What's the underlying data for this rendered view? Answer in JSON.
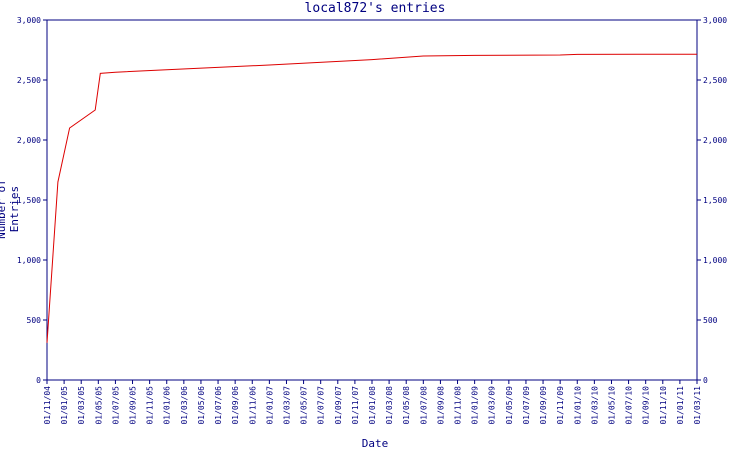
{
  "chart_data": {
    "type": "line",
    "title": "local872's entries",
    "xlabel": "Date",
    "ylabel": "Number of Entries",
    "ylim": [
      0,
      3000
    ],
    "y_ticks": [
      "0",
      "500",
      "1,000",
      "1,500",
      "2,000",
      "2,500",
      "3,000"
    ],
    "x_ticks": [
      "01/11/04",
      "01/01/05",
      "01/03/05",
      "01/05/05",
      "01/07/05",
      "01/09/05",
      "01/11/05",
      "01/01/06",
      "01/03/06",
      "01/05/06",
      "01/07/06",
      "01/09/06",
      "01/11/06",
      "01/01/07",
      "01/03/07",
      "01/05/07",
      "01/07/07",
      "01/09/07",
      "01/11/07",
      "01/01/08",
      "01/03/08",
      "01/05/08",
      "01/07/08",
      "01/09/08",
      "01/11/08",
      "01/01/09",
      "01/03/09",
      "01/05/09",
      "01/07/09",
      "01/09/09",
      "01/11/09",
      "01/01/10",
      "01/03/10",
      "01/05/10",
      "01/07/10",
      "01/09/10",
      "01/11/10",
      "01/01/11",
      "01/03/11"
    ],
    "grid": false,
    "line_color": "#dd0000",
    "axis_color": "#000080",
    "series": [
      {
        "x": [
          "2004-11-01",
          "2004-12-10",
          "2005-01-20",
          "2005-04-20",
          "2005-05-08",
          "2005-07-01",
          "2006-01-01",
          "2007-01-01",
          "2008-01-01",
          "2008-07-01",
          "2009-01-01",
          "2009-11-01",
          "2010-01-01",
          "2011-03-01"
        ],
        "y": [
          310,
          1650,
          2100,
          2250,
          2555,
          2565,
          2585,
          2625,
          2670,
          2700,
          2705,
          2708,
          2713,
          2715
        ]
      }
    ]
  }
}
